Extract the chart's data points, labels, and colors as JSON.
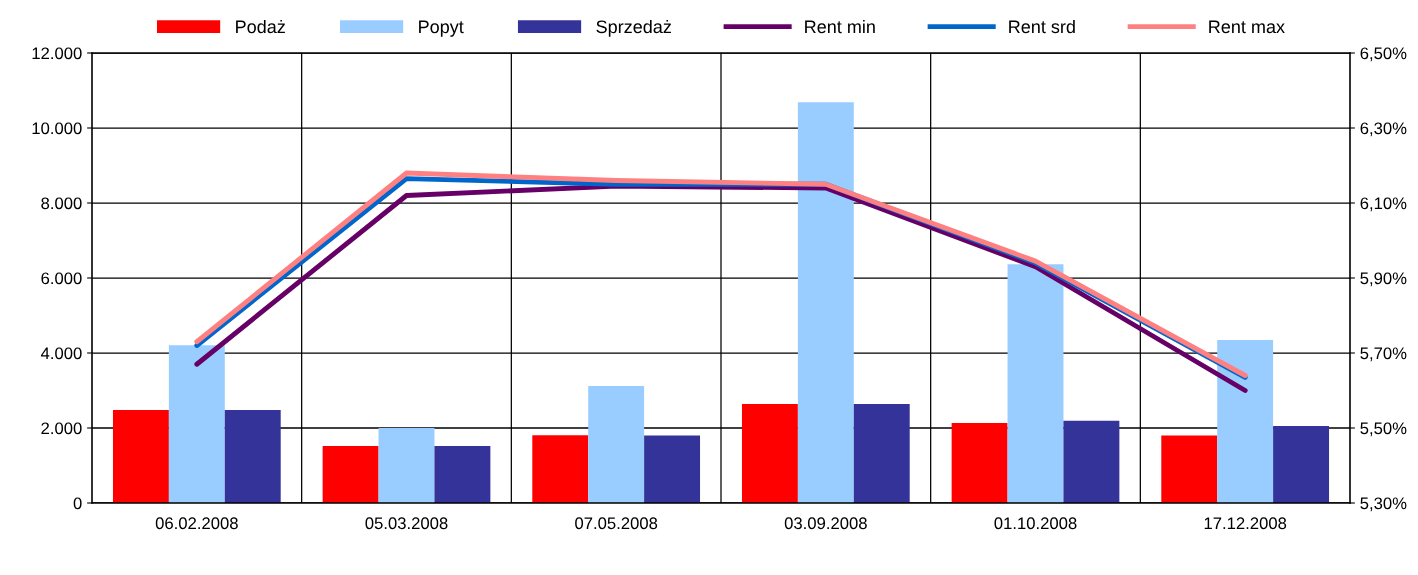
{
  "chart_data": {
    "type": "bar",
    "categories": [
      "06.02.2008",
      "05.03.2008",
      "07.05.2008",
      "03.09.2008",
      "01.10.2008",
      "17.12.2008"
    ],
    "series": [
      {
        "name": "Podaż",
        "color": "#ff0000",
        "values": [
          2480,
          1520,
          1810,
          2640,
          2130,
          1800
        ]
      },
      {
        "name": "Popyt",
        "color": "#99ccff",
        "values": [
          4210,
          2000,
          3120,
          10690,
          6370,
          4350
        ]
      },
      {
        "name": "Sprzedaż",
        "color": "#333399",
        "values": [
          2480,
          1520,
          1800,
          2640,
          2190,
          2050
        ]
      },
      {
        "name": "Rent min",
        "type": "line",
        "axis": "y2",
        "color": "#660066",
        "values": [
          5.67,
          6.12,
          6.145,
          6.14,
          5.93,
          5.6
        ]
      },
      {
        "name": "Rent srd",
        "type": "line",
        "axis": "y2",
        "color": "#0066cc",
        "values": [
          5.72,
          6.165,
          6.15,
          6.15,
          5.94,
          5.635
        ]
      },
      {
        "name": "Rent max",
        "type": "line",
        "axis": "y2",
        "color": "#ff8080",
        "values": [
          5.73,
          6.18,
          6.16,
          6.15,
          5.945,
          5.64
        ]
      }
    ],
    "ylim": [
      0,
      12000
    ],
    "yticks": [
      {
        "value": 0,
        "label": "0"
      },
      {
        "value": 2000,
        "label": "2.000"
      },
      {
        "value": 4000,
        "label": "4.000"
      },
      {
        "value": 6000,
        "label": "6.000"
      },
      {
        "value": 8000,
        "label": "8.000"
      },
      {
        "value": 10000,
        "label": "10.000"
      },
      {
        "value": 12000,
        "label": "12.000"
      }
    ],
    "y2lim": [
      5.3,
      6.5
    ],
    "y2ticks": [
      {
        "value": 5.3,
        "label": "5,30%"
      },
      {
        "value": 5.5,
        "label": "5,50%"
      },
      {
        "value": 5.7,
        "label": "5,70%"
      },
      {
        "value": 5.9,
        "label": "5,90%"
      },
      {
        "value": 6.1,
        "label": "6,10%"
      },
      {
        "value": 6.3,
        "label": "6,30%"
      },
      {
        "value": 6.5,
        "label": "6,50%"
      }
    ],
    "grid": true,
    "legend": "top",
    "line_style": "solid",
    "marker": "none"
  }
}
